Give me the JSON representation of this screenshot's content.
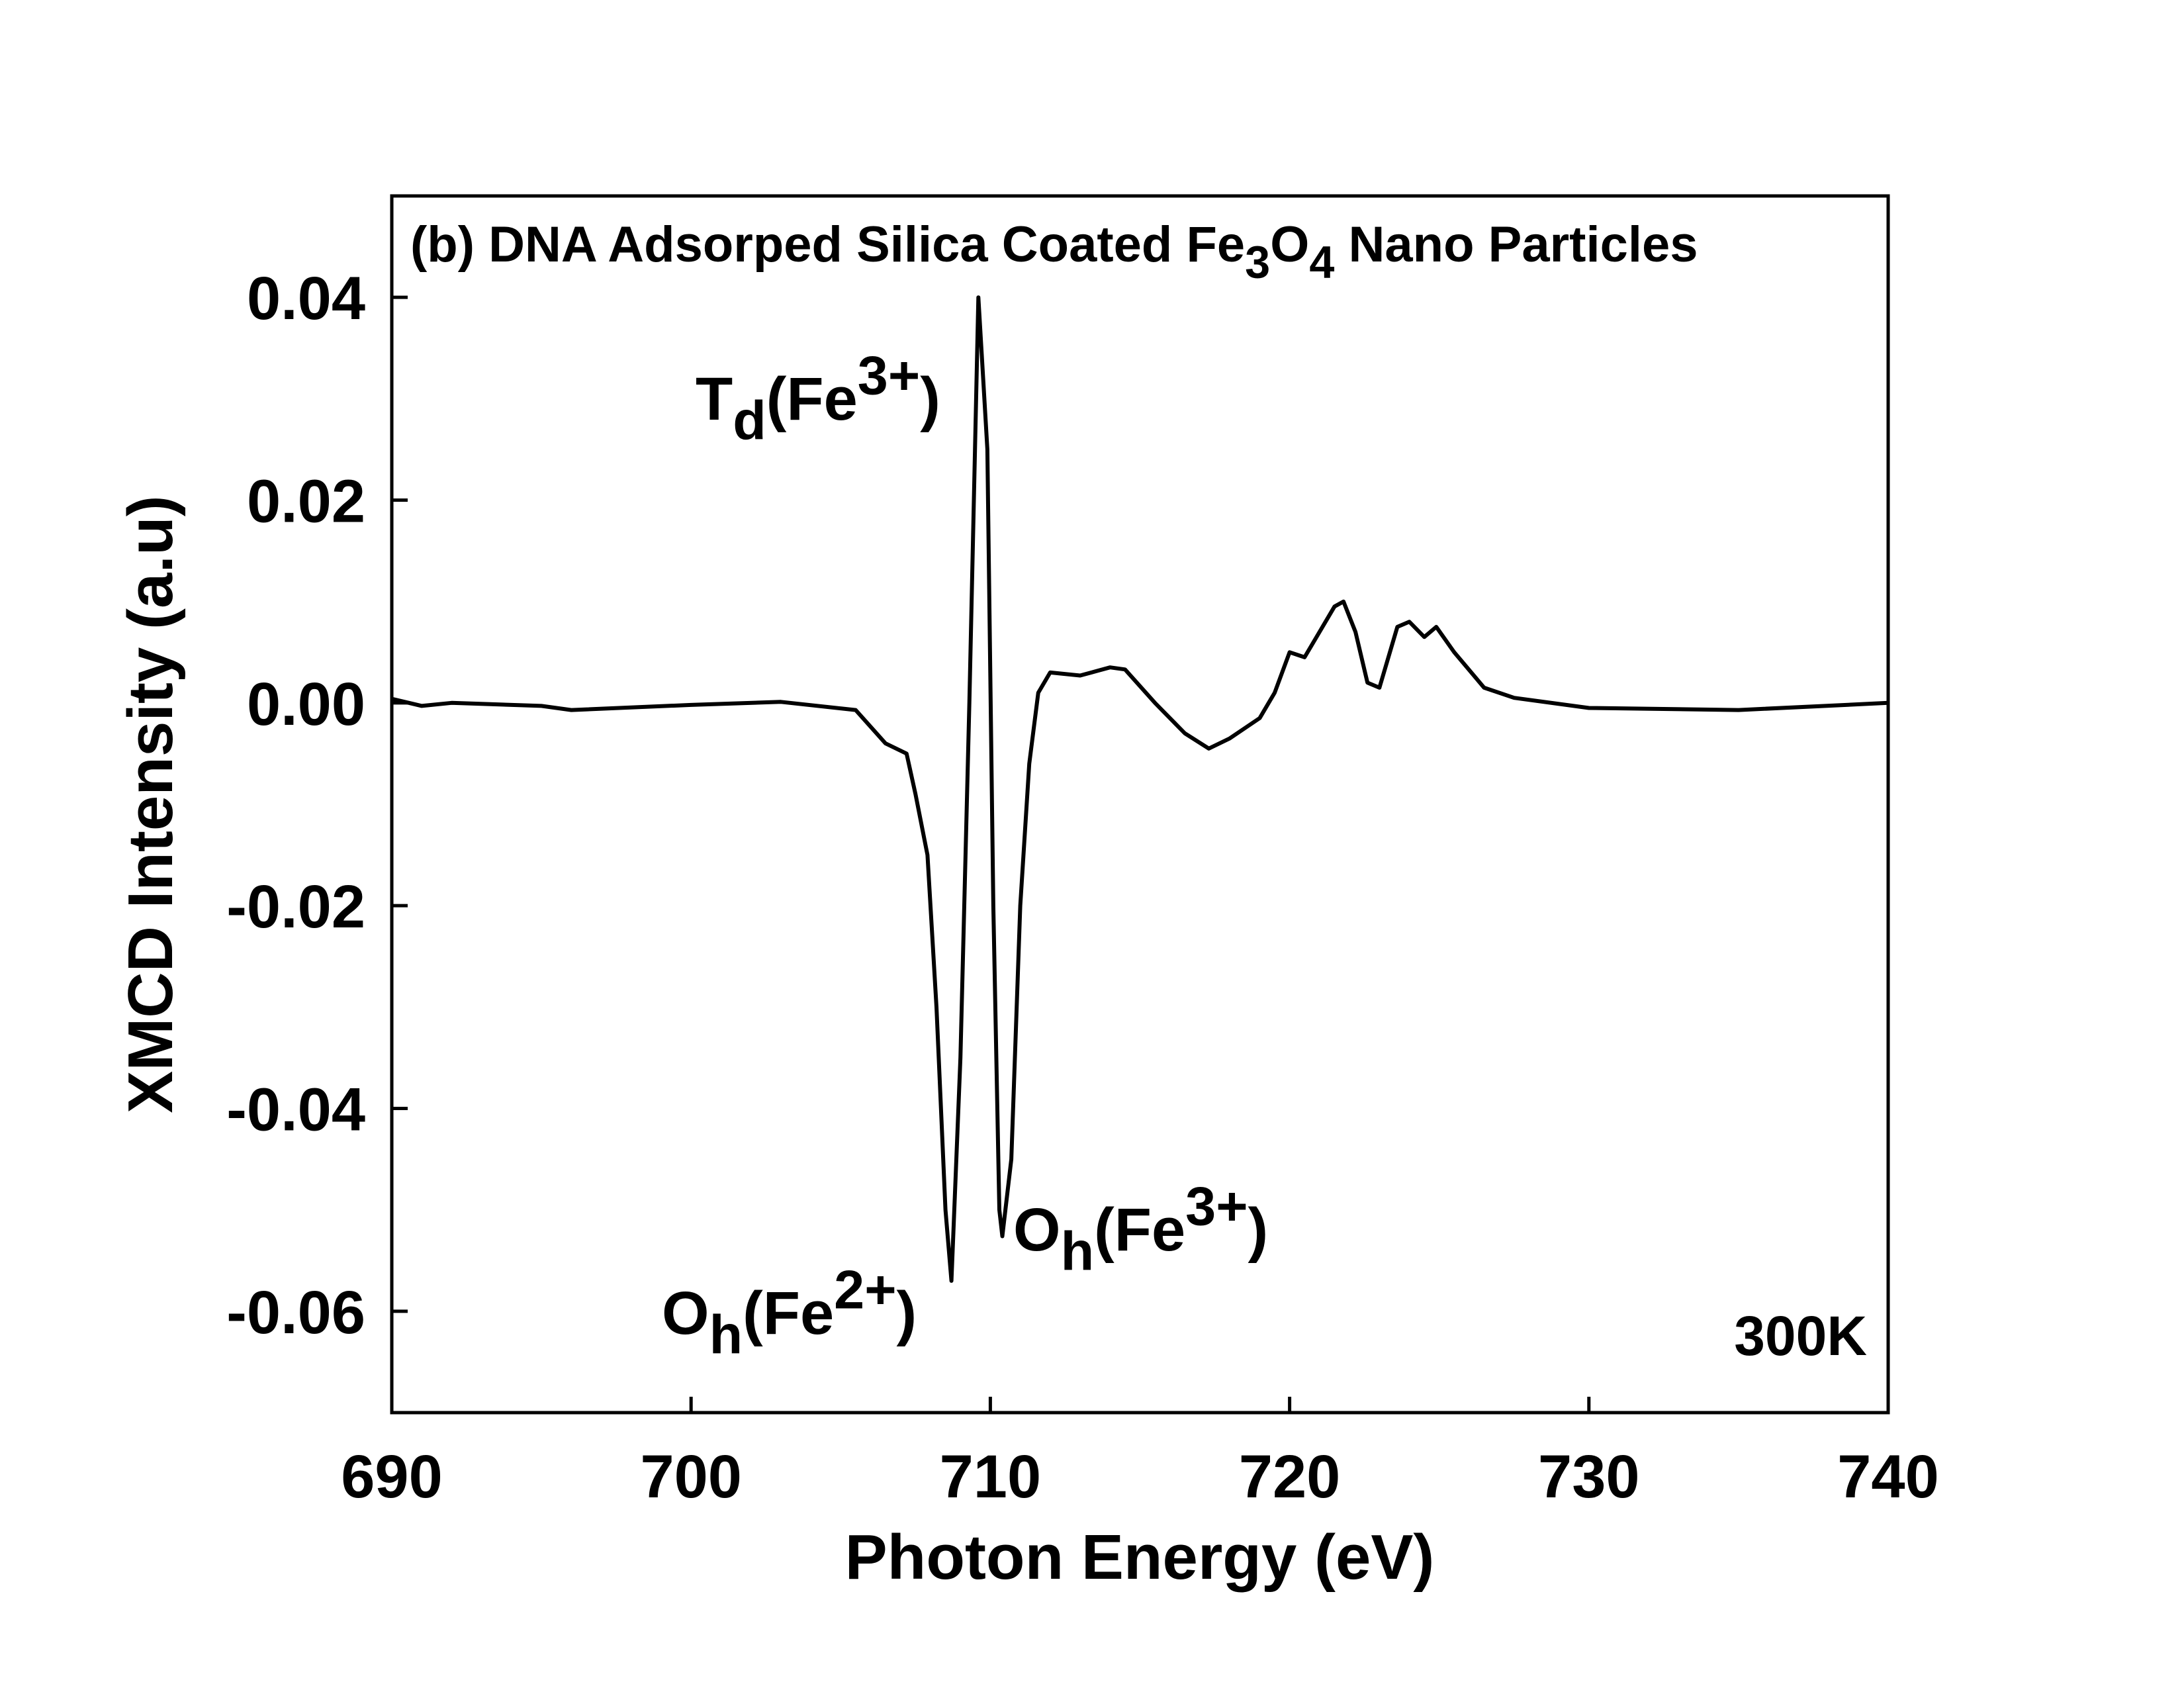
{
  "chart_data": {
    "type": "line",
    "xlabel": "Photon Energy (eV)",
    "ylabel": "XMCD Intensity (a.u)",
    "annotations": [
      {
        "parts": [
          {
            "text": "(b) DNA Adsorped Silica Coated Fe"
          },
          {
            "text": "3",
            "shift": "sub"
          },
          {
            "text": "O"
          },
          {
            "text": "4",
            "shift": "sub"
          },
          {
            "text": " Nano Particles"
          }
        ]
      },
      {
        "parts": [
          {
            "text": "T"
          },
          {
            "text": "d",
            "shift": "sub"
          },
          {
            "text": "(Fe"
          },
          {
            "text": "3+",
            "shift": "super"
          },
          {
            "text": ")"
          }
        ]
      },
      {
        "parts": [
          {
            "text": "O"
          },
          {
            "text": "h",
            "shift": "sub"
          },
          {
            "text": "(Fe"
          },
          {
            "text": "2+",
            "shift": "super"
          },
          {
            "text": ")"
          }
        ]
      },
      {
        "parts": [
          {
            "text": "O"
          },
          {
            "text": "h",
            "shift": "sub"
          },
          {
            "text": "(Fe"
          },
          {
            "text": "3+",
            "shift": "super"
          },
          {
            "text": ")"
          }
        ]
      },
      {
        "parts": [
          {
            "text": "300K"
          }
        ]
      }
    ],
    "x": [
      690,
      691,
      692,
      695,
      696,
      700,
      703,
      705.5,
      706.5,
      707.2,
      707.5,
      707.9,
      708.2,
      708.5,
      708.7,
      709.0,
      709.3,
      709.6,
      709.9,
      710.1,
      710.3,
      710.4,
      710.7,
      711.0,
      711.3,
      711.6,
      712.0,
      713.0,
      714.0,
      714.5,
      715.5,
      716.5,
      717.3,
      718.0,
      719.0,
      719.5,
      720.0,
      720.5,
      721.0,
      721.5,
      721.8,
      722.2,
      722.6,
      723.0,
      723.6,
      724.0,
      724.5,
      724.9,
      725.5,
      726.5,
      727.5,
      730,
      735,
      740
    ],
    "series": [
      {
        "color": "#000000",
        "values": [
          0.0004,
          -0.0003,
          0.0,
          -0.0003,
          -0.0007,
          -0.0002,
          0.0001,
          -0.0007,
          -0.004,
          -0.005,
          -0.009,
          -0.015,
          -0.03,
          -0.05,
          -0.057,
          -0.035,
          0.0,
          0.04,
          0.025,
          -0.02,
          -0.05,
          -0.0526,
          -0.045,
          -0.02,
          -0.006,
          0.001,
          0.003,
          0.0027,
          0.0035,
          0.0033,
          0.0,
          -0.003,
          -0.0045,
          -0.0035,
          -0.0015,
          0.001,
          0.005,
          0.0045,
          0.007,
          0.0095,
          0.01,
          0.007,
          0.002,
          0.0015,
          0.0075,
          0.008,
          0.0065,
          0.0075,
          0.005,
          0.0015,
          0.0005,
          -0.0005,
          -0.0007,
          0.0
        ]
      }
    ],
    "xlim": [
      690,
      740
    ],
    "xticks": [
      690,
      700,
      710,
      720,
      730,
      740
    ],
    "ylim": [
      -0.07,
      0.05
    ],
    "yticks": [
      {
        "value": -0.06,
        "label": "-0.06"
      },
      {
        "value": -0.04,
        "label": "-0.04"
      },
      {
        "value": -0.02,
        "label": "-0.02"
      },
      {
        "value": 0,
        "label": "0.00"
      },
      {
        "value": 0.02,
        "label": "0.02"
      },
      {
        "value": 0.04,
        "label": "0.04"
      }
    ]
  }
}
